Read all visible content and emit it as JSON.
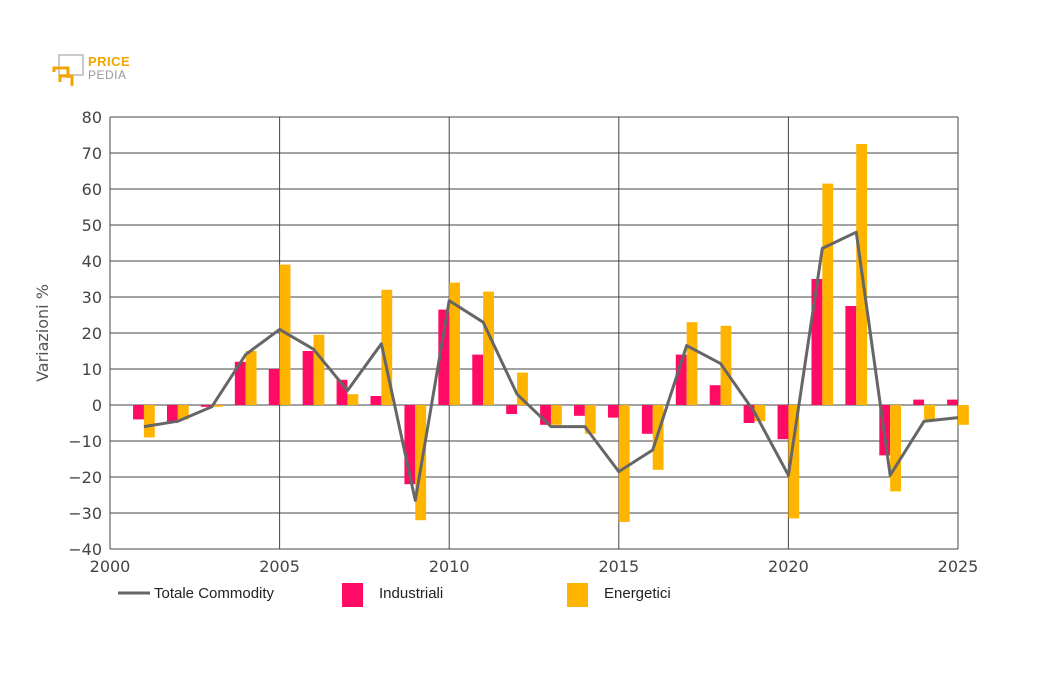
{
  "logo": {
    "word1": "PRICE",
    "word2": "PEDIA"
  },
  "colors": {
    "totale": "#666666",
    "industriali": "#ff0a64",
    "energetici": "#ffb400",
    "grid": "#444444"
  },
  "chart_data": {
    "type": "bar",
    "ylabel": "Variazioni %",
    "ylim": [
      -40,
      80
    ],
    "yticks": [
      -40,
      -30,
      -20,
      -10,
      0,
      10,
      20,
      30,
      40,
      50,
      60,
      70,
      80
    ],
    "ytick_labels": [
      "−40",
      "−30",
      "−20",
      "−10",
      "0",
      "10",
      "20",
      "30",
      "40",
      "50",
      "60",
      "70",
      "80"
    ],
    "xlim": [
      2000,
      2025
    ],
    "xticks": [
      2000,
      2005,
      2010,
      2015,
      2020,
      2025
    ],
    "xtick_labels": [
      "2000",
      "2005",
      "2010",
      "2015",
      "2020",
      "2025"
    ],
    "grid": true,
    "legend_position": "bottom",
    "categories": [
      2001,
      2002,
      2003,
      2004,
      2005,
      2006,
      2007,
      2008,
      2009,
      2010,
      2011,
      2012,
      2013,
      2014,
      2015,
      2016,
      2017,
      2018,
      2019,
      2020,
      2021,
      2022,
      2023,
      2024,
      2025
    ],
    "series": [
      {
        "name": "Industriali",
        "kind": "bar",
        "values": [
          -4,
          -5,
          -0.5,
          12,
          10,
          15,
          7,
          2.5,
          -22,
          26.5,
          14,
          -2.5,
          -5.5,
          -3,
          -3.5,
          -8,
          14,
          5.5,
          -5,
          -9.5,
          35,
          27.5,
          -14,
          1.5,
          1.5
        ]
      },
      {
        "name": "Energetici",
        "kind": "bar",
        "values": [
          -9,
          -4,
          -0.5,
          15,
          39,
          19.5,
          3,
          32,
          -32,
          34,
          31.5,
          9,
          -5.5,
          -8,
          -32.5,
          -18,
          23,
          22,
          -4.5,
          -31.5,
          61.5,
          72.5,
          -24,
          -4,
          -5.5
        ]
      },
      {
        "name": "Totale Commodity",
        "kind": "line",
        "values": [
          -6,
          -4.5,
          -0.5,
          14,
          21,
          15.5,
          4,
          17,
          -26.5,
          29,
          23,
          3,
          -6,
          -6,
          -18.5,
          -12.5,
          16.5,
          11.5,
          -2,
          -19.5,
          43.5,
          48,
          -19.5,
          -4.5,
          -3.5
        ]
      }
    ]
  }
}
